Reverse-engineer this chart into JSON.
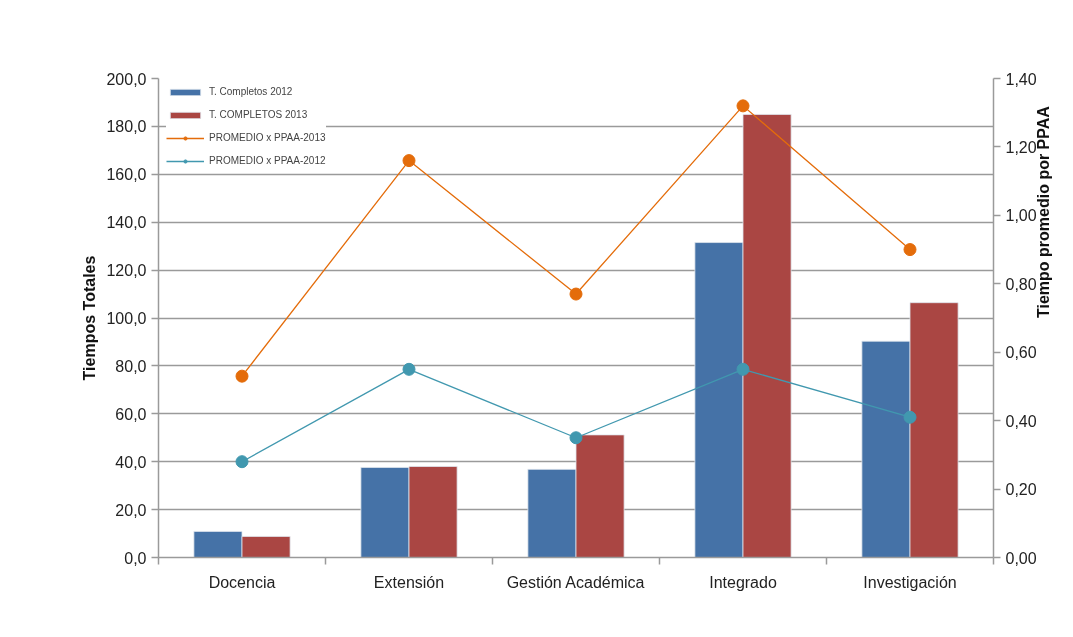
{
  "chart_data": {
    "type": "bar",
    "ylabel": "Tiempos Totales",
    "y2label": "Tiempo promedio por PPAA",
    "categories": [
      "Docencia",
      "Extensión",
      "Gestión Académica",
      "Integrado",
      "Investigación"
    ],
    "series": [
      {
        "name": "T. Completos 2012",
        "color": "#4572a7",
        "values": [
          10.9,
          37.6,
          36.8,
          131.5,
          90.3
        ]
      },
      {
        "name": "T. COMPLETOS 2013",
        "color": "#aa4643",
        "values": [
          8.8,
          38.0,
          51.2,
          185.0,
          106.4
        ]
      },
      {
        "name": "PROMEDIO x PPAA-2013",
        "type": "line",
        "axis": "y2",
        "color": "#e46c0a",
        "values": [
          0.53,
          1.16,
          0.77,
          1.32,
          0.9
        ]
      },
      {
        "name": "PROMEDIO x PPAA-2012",
        "type": "line",
        "axis": "y2",
        "color": "#4198af",
        "values": [
          0.28,
          0.55,
          0.35,
          0.55,
          0.41
        ]
      }
    ],
    "ylim": [
      0,
      200
    ],
    "yticks": [
      {
        "value": 0,
        "label": "0,0"
      },
      {
        "value": 20,
        "label": "20,0"
      },
      {
        "value": 40,
        "label": "40,0"
      },
      {
        "value": 60,
        "label": "60,0"
      },
      {
        "value": 80,
        "label": "80,0"
      },
      {
        "value": 100,
        "label": "100,0"
      },
      {
        "value": 120,
        "label": "120,0"
      },
      {
        "value": 140,
        "label": "140,0"
      },
      {
        "value": 160,
        "label": "160,0"
      },
      {
        "value": 180,
        "label": "180,0"
      },
      {
        "value": 200,
        "label": "200,0"
      }
    ],
    "y2lim": [
      0,
      1.4
    ],
    "y2ticks": [
      {
        "value": 0,
        "label": "0,00"
      },
      {
        "value": 0.2,
        "label": "0,20"
      },
      {
        "value": 0.4,
        "label": "0,40"
      },
      {
        "value": 0.6,
        "label": "0,60"
      },
      {
        "value": 0.8,
        "label": "0,80"
      },
      {
        "value": 1.0,
        "label": "1,00"
      },
      {
        "value": 1.2,
        "label": "1,20"
      },
      {
        "value": 1.4,
        "label": "1,40"
      }
    ],
    "grid": "y",
    "legend": "top left",
    "marker": "circle",
    "line_style": "solid"
  }
}
